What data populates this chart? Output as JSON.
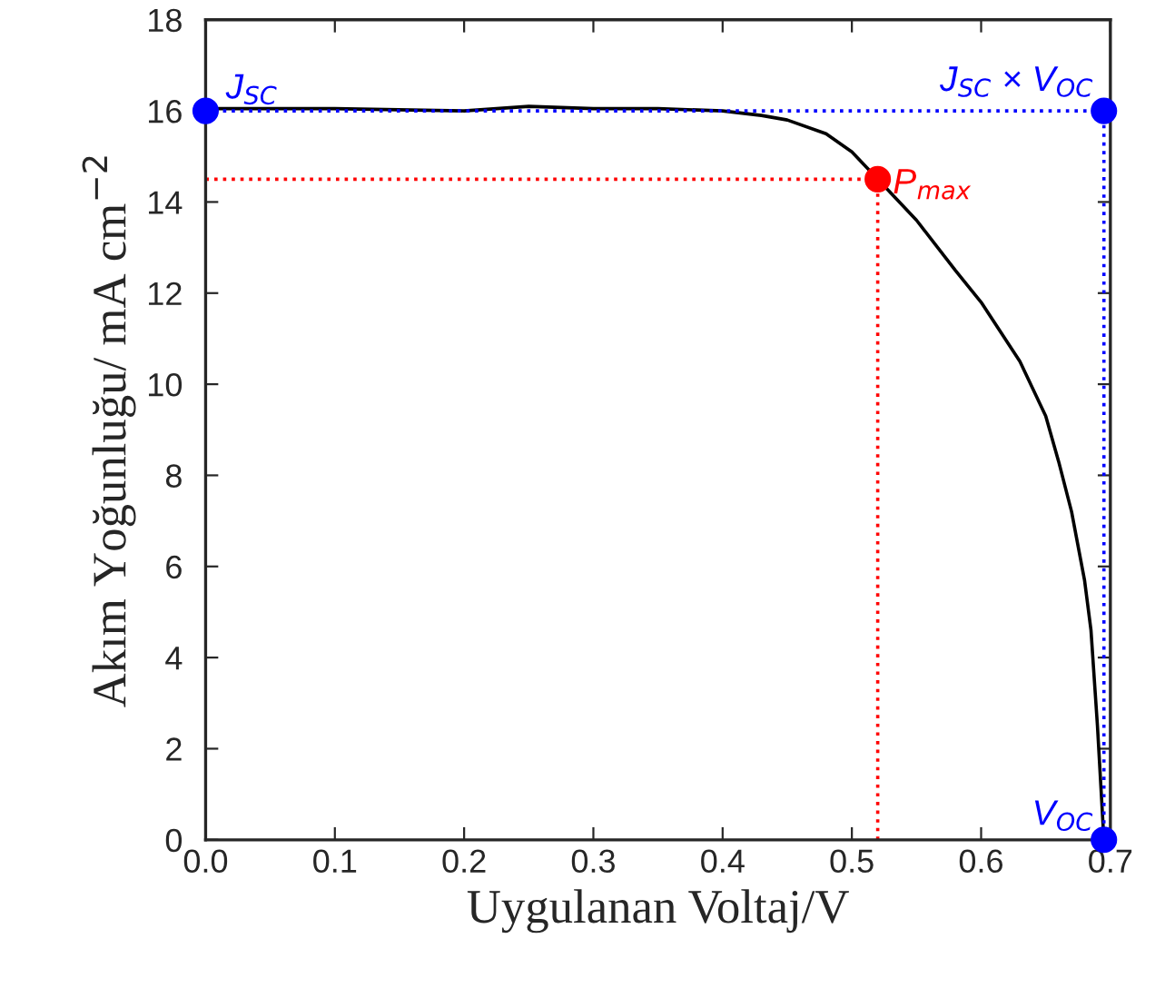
{
  "chart_data": {
    "type": "line",
    "xlabel": "Uygulanan Voltaj/V",
    "ylabel": "Akım Yoğunluğu/ mA cm$^{−2}$",
    "xlim": [
      0,
      0.7
    ],
    "xticks": [
      {
        "value": 0,
        "label": "0.0"
      },
      0.1,
      0.2,
      0.3,
      0.4,
      0.5,
      0.6,
      0.7
    ],
    "ylim": [
      0,
      18
    ],
    "yticks": [
      0,
      2,
      4,
      6,
      8,
      10,
      12,
      14,
      16,
      18
    ],
    "grid": false,
    "legend": false,
    "series": [
      {
        "type": "line",
        "color": "#000000",
        "line_style": "solid",
        "x": [
          0,
          0.1,
          0.2,
          0.25,
          0.3,
          0.35,
          0.4,
          0.43,
          0.45,
          0.48,
          0.5,
          0.52,
          0.55,
          0.58,
          0.6,
          0.63,
          0.65,
          0.66,
          0.67,
          0.68,
          0.685,
          0.69,
          0.695
        ],
        "values": [
          16.05,
          16.05,
          16.0,
          16.1,
          16.05,
          16.05,
          16.0,
          15.9,
          15.8,
          15.5,
          15.1,
          14.5,
          13.6,
          12.5,
          11.8,
          10.5,
          9.3,
          8.3,
          7.2,
          5.7,
          4.6,
          2.5,
          0
        ]
      },
      {
        "type": "line",
        "color": "#0000ff",
        "line_style": "dotted",
        "x": [
          0,
          0.695,
          0.695
        ],
        "values": [
          16.0,
          16.0,
          0
        ]
      },
      {
        "type": "line",
        "color": "#ff0000",
        "line_style": "dotted",
        "x": [
          0,
          0.52,
          0.52
        ],
        "values": [
          14.5,
          14.5,
          0
        ]
      },
      {
        "type": "scatter",
        "name": "J$_{SC}$",
        "color": "#0000ff",
        "marker": "circle",
        "x": [
          0
        ],
        "values": [
          16.0
        ]
      },
      {
        "type": "scatter",
        "name": "J$_{SC}$ × V$_{OC}$",
        "color": "#0000ff",
        "marker": "circle",
        "x": [
          0.695
        ],
        "values": [
          16.0
        ]
      },
      {
        "type": "scatter",
        "name": "P$_{max}$",
        "color": "#ff0000",
        "marker": "circle",
        "x": [
          0.52
        ],
        "values": [
          14.5
        ]
      },
      {
        "type": "scatter",
        "name": "V$_{OC}$",
        "color": "#0000ff",
        "marker": "circle",
        "x": [
          0.695
        ],
        "values": [
          0
        ]
      }
    ]
  }
}
